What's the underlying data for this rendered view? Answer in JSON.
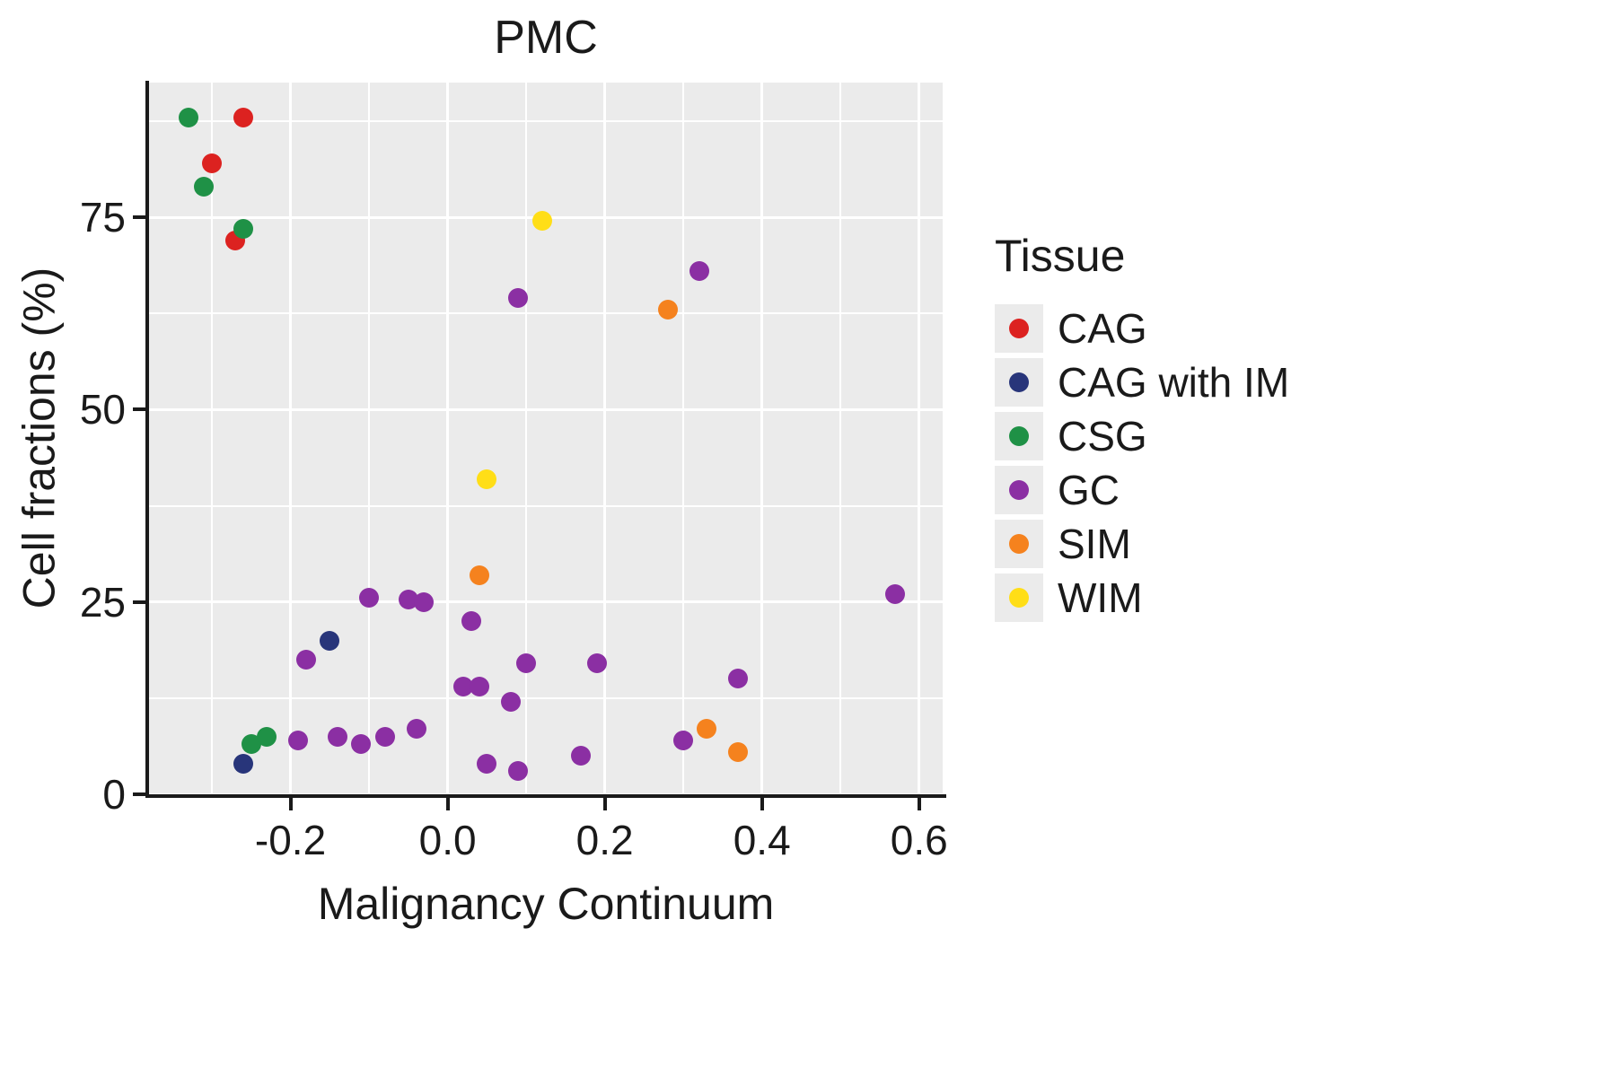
{
  "chart_data": {
    "type": "scatter",
    "title": "PMC",
    "xlabel": "Malignancy Continuum",
    "ylabel": "Cell fractions (%)",
    "xlim": [
      -0.38,
      0.63
    ],
    "ylim": [
      0,
      92.5
    ],
    "x_ticks": [
      -0.2,
      0.0,
      0.2,
      0.4,
      0.6
    ],
    "x_tick_labels": [
      "-0.2",
      "0.0",
      "0.2",
      "0.4",
      "0.6"
    ],
    "x_minor_ticks": [
      -0.3,
      -0.1,
      0.1,
      0.3,
      0.5
    ],
    "y_ticks": [
      0,
      25,
      50,
      75
    ],
    "y_tick_labels": [
      "0",
      "25",
      "50",
      "75"
    ],
    "y_minor_ticks": [
      12.5,
      37.5,
      62.5,
      87.5
    ],
    "grid": true,
    "panel_background": "#EBEBEB",
    "gridline_color": "#FFFFFF",
    "legend_title": "Tissue",
    "legend_position": "right",
    "point_radius": 11,
    "series": [
      {
        "name": "CAG",
        "color": "#DC2220",
        "points": [
          [
            -0.26,
            88
          ],
          [
            -0.3,
            82
          ],
          [
            -0.27,
            72
          ]
        ]
      },
      {
        "name": "CAG with IM",
        "color": "#28357A",
        "points": [
          [
            -0.15,
            20
          ],
          [
            -0.26,
            4
          ]
        ]
      },
      {
        "name": "CSG",
        "color": "#1F9146",
        "points": [
          [
            -0.33,
            88
          ],
          [
            -0.31,
            79
          ],
          [
            -0.26,
            73.5
          ],
          [
            -0.25,
            6.5
          ],
          [
            -0.23,
            7.5
          ]
        ]
      },
      {
        "name": "GC",
        "color": "#8B2FA3",
        "points": [
          [
            0.09,
            64.5
          ],
          [
            0.32,
            68
          ],
          [
            -0.1,
            25.5
          ],
          [
            -0.05,
            25.3
          ],
          [
            -0.03,
            25
          ],
          [
            0.03,
            22.5
          ],
          [
            -0.18,
            17.5
          ],
          [
            0.1,
            17
          ],
          [
            0.19,
            17
          ],
          [
            0.37,
            15
          ],
          [
            0.02,
            14
          ],
          [
            0.04,
            14
          ],
          [
            0.08,
            12
          ],
          [
            -0.19,
            7
          ],
          [
            -0.14,
            7.5
          ],
          [
            -0.11,
            6.5
          ],
          [
            -0.08,
            7.5
          ],
          [
            -0.04,
            8.5
          ],
          [
            0.05,
            4
          ],
          [
            0.09,
            3
          ],
          [
            0.17,
            5
          ],
          [
            0.3,
            7
          ],
          [
            0.57,
            26
          ]
        ]
      },
      {
        "name": "SIM",
        "color": "#F5821E",
        "points": [
          [
            0.28,
            63
          ],
          [
            0.04,
            28.5
          ],
          [
            0.33,
            8.5
          ],
          [
            0.37,
            5.5
          ]
        ]
      },
      {
        "name": "WIM",
        "color": "#FFDE17",
        "points": [
          [
            0.12,
            74.5
          ],
          [
            0.05,
            41
          ]
        ]
      }
    ]
  }
}
